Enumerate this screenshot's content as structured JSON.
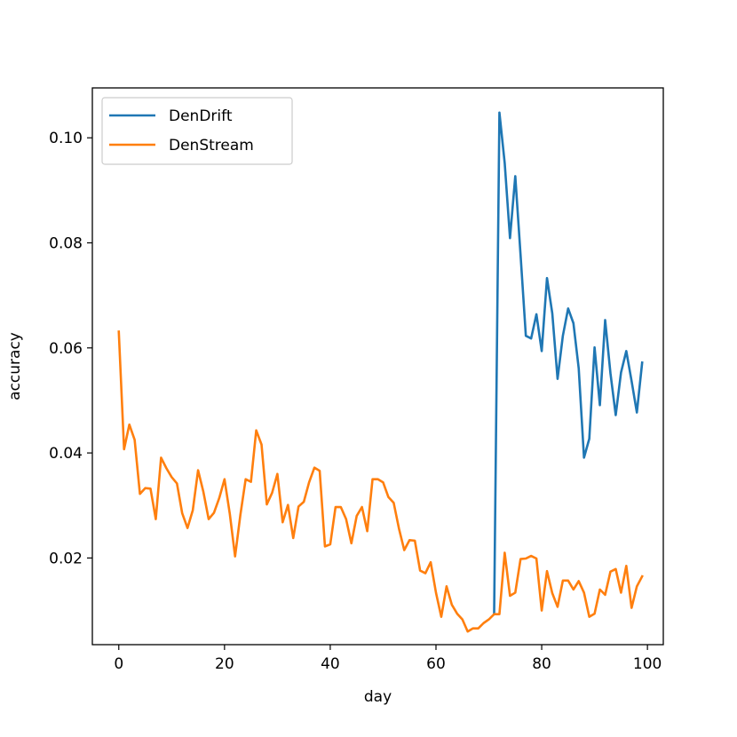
{
  "chart_data": {
    "type": "line",
    "title": "",
    "xlabel": "day",
    "ylabel": "accuracy",
    "xlim": [
      -5,
      103
    ],
    "ylim": [
      0.0035,
      0.1095
    ],
    "x_ticks": [
      0,
      20,
      40,
      60,
      80,
      100
    ],
    "x_tick_labels": [
      "0",
      "20",
      "40",
      "60",
      "80",
      "100"
    ],
    "y_ticks": [
      0.02,
      0.04,
      0.06,
      0.08,
      0.1
    ],
    "y_tick_labels": [
      "0.02",
      "0.04",
      "0.06",
      "0.08",
      "0.10"
    ],
    "grid": false,
    "legend_position": "upper-left",
    "series": [
      {
        "name": "DenDrift",
        "color": "#1f77b4",
        "x": [
          71,
          72,
          73,
          74,
          75,
          76,
          77,
          78,
          79,
          80,
          81,
          82,
          83,
          84,
          85,
          86,
          87,
          88,
          89,
          90,
          91,
          92,
          93,
          94,
          95,
          96,
          97,
          98,
          99
        ],
        "values": [
          0.0093,
          0.1048,
          0.0952,
          0.0809,
          0.0927,
          0.0777,
          0.0623,
          0.0618,
          0.0664,
          0.0594,
          0.0733,
          0.0666,
          0.0541,
          0.0623,
          0.0675,
          0.0647,
          0.0561,
          0.0391,
          0.0427,
          0.0601,
          0.0491,
          0.0653,
          0.0552,
          0.0472,
          0.0553,
          0.0594,
          0.0537,
          0.0477,
          0.0572
        ]
      },
      {
        "name": "DenStream",
        "color": "#ff7f0e",
        "x": [
          0,
          1,
          2,
          3,
          4,
          5,
          6,
          7,
          8,
          9,
          10,
          11,
          12,
          13,
          14,
          15,
          16,
          17,
          18,
          19,
          20,
          21,
          22,
          23,
          24,
          25,
          26,
          27,
          28,
          29,
          30,
          31,
          32,
          33,
          34,
          35,
          36,
          37,
          38,
          39,
          40,
          41,
          42,
          43,
          44,
          45,
          46,
          47,
          48,
          49,
          50,
          51,
          52,
          53,
          54,
          55,
          56,
          57,
          58,
          59,
          60,
          61,
          62,
          63,
          64,
          65,
          66,
          67,
          68,
          69,
          70,
          71,
          72,
          73,
          74,
          75,
          76,
          77,
          78,
          79,
          80,
          81,
          82,
          83,
          84,
          85,
          86,
          87,
          88,
          89,
          90,
          91,
          92,
          93,
          94,
          95,
          96,
          97,
          98,
          99
        ],
        "values": [
          0.0631,
          0.0407,
          0.0454,
          0.0425,
          0.0322,
          0.0333,
          0.0332,
          0.0274,
          0.0391,
          0.0371,
          0.0354,
          0.0342,
          0.0285,
          0.0257,
          0.0291,
          0.0367,
          0.0326,
          0.0274,
          0.0286,
          0.0314,
          0.035,
          0.0284,
          0.0203,
          0.0282,
          0.035,
          0.0345,
          0.0443,
          0.0416,
          0.0302,
          0.0324,
          0.036,
          0.0268,
          0.0301,
          0.0238,
          0.0298,
          0.0307,
          0.0344,
          0.0372,
          0.0366,
          0.0222,
          0.0226,
          0.0297,
          0.0297,
          0.0274,
          0.0228,
          0.028,
          0.0297,
          0.0251,
          0.035,
          0.035,
          0.0344,
          0.0316,
          0.0305,
          0.0256,
          0.0215,
          0.0234,
          0.0233,
          0.0176,
          0.0171,
          0.0192,
          0.0134,
          0.0088,
          0.0146,
          0.0111,
          0.0094,
          0.0083,
          0.006,
          0.0066,
          0.0066,
          0.0076,
          0.0083,
          0.0093,
          0.0093,
          0.021,
          0.0128,
          0.0134,
          0.0198,
          0.0199,
          0.0204,
          0.0199,
          0.01,
          0.0175,
          0.0133,
          0.0107,
          0.0157,
          0.0157,
          0.014,
          0.0156,
          0.0134,
          0.0088,
          0.0094,
          0.014,
          0.013,
          0.0174,
          0.0179,
          0.0134,
          0.0185,
          0.0105,
          0.0146,
          0.0165
        ]
      }
    ]
  }
}
